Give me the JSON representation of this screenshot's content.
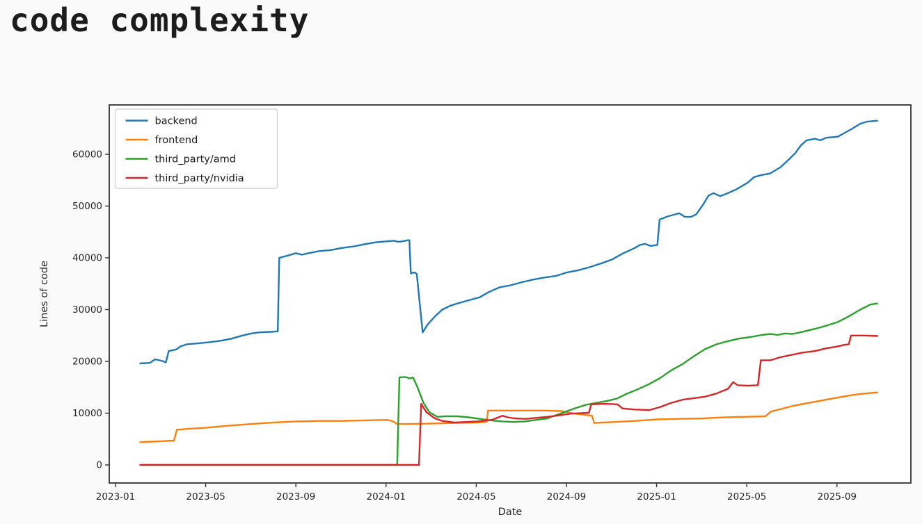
{
  "page": {
    "title": "code complexity"
  },
  "chart_data": {
    "type": "line",
    "title": "code complexity",
    "xlabel": "Date",
    "ylabel": "Lines of code",
    "x_tick_labels": [
      "2023-01",
      "2023-05",
      "2023-09",
      "2024-01",
      "2024-05",
      "2024-09",
      "2025-01",
      "2025-05",
      "2025-09"
    ],
    "y_tick_values": [
      0,
      10000,
      20000,
      30000,
      40000,
      50000,
      60000
    ],
    "ylim": [
      -3500,
      69500
    ],
    "xlim_dates": [
      "2022-12-23",
      "2025-12-11"
    ],
    "grid": false,
    "legend": {
      "position": "upper left",
      "entries": [
        "backend",
        "frontend",
        "third_party/amd",
        "third_party/nvidia"
      ]
    },
    "series": [
      {
        "name": "backend",
        "color": "#1f77b4",
        "points": [
          [
            "2023-02-03",
            19600
          ],
          [
            "2023-02-17",
            19700
          ],
          [
            "2023-02-24",
            20400
          ],
          [
            "2023-03-03",
            20100
          ],
          [
            "2023-03-08",
            19800
          ],
          [
            "2023-03-12",
            22000
          ],
          [
            "2023-03-22",
            22300
          ],
          [
            "2023-03-28",
            22900
          ],
          [
            "2023-04-06",
            23300
          ],
          [
            "2023-04-22",
            23500
          ],
          [
            "2023-05-06",
            23700
          ],
          [
            "2023-05-22",
            24000
          ],
          [
            "2023-06-06",
            24400
          ],
          [
            "2023-06-20",
            25000
          ],
          [
            "2023-07-02",
            25400
          ],
          [
            "2023-07-12",
            25600
          ],
          [
            "2023-07-28",
            25700
          ],
          [
            "2023-08-07",
            25800
          ],
          [
            "2023-08-09",
            40000
          ],
          [
            "2023-08-22",
            40500
          ],
          [
            "2023-09-01",
            40900
          ],
          [
            "2023-09-09",
            40600
          ],
          [
            "2023-09-18",
            40900
          ],
          [
            "2023-10-02",
            41300
          ],
          [
            "2023-10-18",
            41500
          ],
          [
            "2023-11-02",
            41900
          ],
          [
            "2023-11-18",
            42200
          ],
          [
            "2023-12-02",
            42600
          ],
          [
            "2023-12-18",
            43000
          ],
          [
            "2024-01-03",
            43200
          ],
          [
            "2024-01-12",
            43300
          ],
          [
            "2024-01-17",
            43100
          ],
          [
            "2024-01-24",
            43200
          ],
          [
            "2024-01-30",
            43400
          ],
          [
            "2024-02-02",
            43400
          ],
          [
            "2024-02-04",
            37000
          ],
          [
            "2024-02-09",
            37200
          ],
          [
            "2024-02-12",
            36900
          ],
          [
            "2024-02-20",
            25600
          ],
          [
            "2024-02-27",
            27200
          ],
          [
            "2024-03-07",
            28800
          ],
          [
            "2024-03-16",
            30000
          ],
          [
            "2024-03-26",
            30700
          ],
          [
            "2024-04-06",
            31200
          ],
          [
            "2024-04-21",
            31800
          ],
          [
            "2024-05-06",
            32400
          ],
          [
            "2024-05-18",
            33400
          ],
          [
            "2024-06-02",
            34300
          ],
          [
            "2024-06-17",
            34700
          ],
          [
            "2024-07-02",
            35300
          ],
          [
            "2024-07-17",
            35800
          ],
          [
            "2024-08-02",
            36200
          ],
          [
            "2024-08-17",
            36500
          ],
          [
            "2024-09-02",
            37200
          ],
          [
            "2024-09-17",
            37600
          ],
          [
            "2024-10-02",
            38200
          ],
          [
            "2024-10-17",
            38900
          ],
          [
            "2024-11-02",
            39700
          ],
          [
            "2024-11-17",
            40900
          ],
          [
            "2024-12-02",
            41900
          ],
          [
            "2024-12-09",
            42500
          ],
          [
            "2024-12-16",
            42700
          ],
          [
            "2024-12-23",
            42300
          ],
          [
            "2025-01-02",
            42500
          ],
          [
            "2025-01-05",
            47400
          ],
          [
            "2025-01-16",
            48000
          ],
          [
            "2025-02-01",
            48600
          ],
          [
            "2025-02-09",
            47900
          ],
          [
            "2025-02-17",
            47900
          ],
          [
            "2025-02-24",
            48400
          ],
          [
            "2025-03-03",
            50300
          ],
          [
            "2025-03-10",
            52000
          ],
          [
            "2025-03-17",
            52500
          ],
          [
            "2025-03-26",
            51900
          ],
          [
            "2025-04-06",
            52500
          ],
          [
            "2025-04-17",
            53200
          ],
          [
            "2025-05-02",
            54500
          ],
          [
            "2025-05-11",
            55600
          ],
          [
            "2025-05-21",
            56000
          ],
          [
            "2025-06-02",
            56300
          ],
          [
            "2025-06-16",
            57500
          ],
          [
            "2025-06-26",
            58800
          ],
          [
            "2025-07-06",
            60300
          ],
          [
            "2025-07-13",
            61700
          ],
          [
            "2025-07-21",
            62700
          ],
          [
            "2025-08-02",
            63000
          ],
          [
            "2025-08-09",
            62700
          ],
          [
            "2025-08-17",
            63200
          ],
          [
            "2025-09-02",
            63400
          ],
          [
            "2025-09-11",
            64100
          ],
          [
            "2025-09-21",
            64900
          ],
          [
            "2025-10-02",
            65900
          ],
          [
            "2025-10-11",
            66300
          ],
          [
            "2025-10-26",
            66500
          ]
        ]
      },
      {
        "name": "frontend",
        "color": "#ff7f0e",
        "points": [
          [
            "2023-02-03",
            4400
          ],
          [
            "2023-02-20",
            4500
          ],
          [
            "2023-03-06",
            4600
          ],
          [
            "2023-03-19",
            4700
          ],
          [
            "2023-03-23",
            6800
          ],
          [
            "2023-04-10",
            7000
          ],
          [
            "2023-05-02",
            7200
          ],
          [
            "2023-06-02",
            7600
          ],
          [
            "2023-07-02",
            7900
          ],
          [
            "2023-08-02",
            8200
          ],
          [
            "2023-09-02",
            8400
          ],
          [
            "2023-10-02",
            8500
          ],
          [
            "2023-11-02",
            8500
          ],
          [
            "2023-12-02",
            8600
          ],
          [
            "2024-01-02",
            8700
          ],
          [
            "2024-01-09",
            8500
          ],
          [
            "2024-01-16",
            7900
          ],
          [
            "2024-02-02",
            7900
          ],
          [
            "2024-03-02",
            8000
          ],
          [
            "2024-04-02",
            8100
          ],
          [
            "2024-05-02",
            8200
          ],
          [
            "2024-05-15",
            8300
          ],
          [
            "2024-05-17",
            10500
          ],
          [
            "2024-06-02",
            10500
          ],
          [
            "2024-07-02",
            10500
          ],
          [
            "2024-08-02",
            10500
          ],
          [
            "2024-08-25",
            10400
          ],
          [
            "2024-09-12",
            9900
          ],
          [
            "2024-10-05",
            9500
          ],
          [
            "2024-10-08",
            8100
          ],
          [
            "2024-10-20",
            8200
          ],
          [
            "2024-11-05",
            8300
          ],
          [
            "2024-12-02",
            8500
          ],
          [
            "2025-01-02",
            8800
          ],
          [
            "2025-02-02",
            8900
          ],
          [
            "2025-03-02",
            9000
          ],
          [
            "2025-04-02",
            9200
          ],
          [
            "2025-05-02",
            9300
          ],
          [
            "2025-05-26",
            9400
          ],
          [
            "2025-06-03",
            10300
          ],
          [
            "2025-06-17",
            10800
          ],
          [
            "2025-07-02",
            11400
          ],
          [
            "2025-07-17",
            11800
          ],
          [
            "2025-08-02",
            12200
          ],
          [
            "2025-08-17",
            12600
          ],
          [
            "2025-09-02",
            13000
          ],
          [
            "2025-09-17",
            13400
          ],
          [
            "2025-10-02",
            13700
          ],
          [
            "2025-10-16",
            13900
          ],
          [
            "2025-10-26",
            14000
          ]
        ]
      },
      {
        "name": "third_party/amd",
        "color": "#2ca02c",
        "points": [
          [
            "2023-02-03",
            0
          ],
          [
            "2023-06-01",
            0
          ],
          [
            "2023-10-01",
            0
          ],
          [
            "2024-01-16",
            0
          ],
          [
            "2024-01-19",
            16900
          ],
          [
            "2024-01-27",
            17000
          ],
          [
            "2024-02-03",
            16700
          ],
          [
            "2024-02-07",
            16900
          ],
          [
            "2024-02-13",
            15000
          ],
          [
            "2024-02-21",
            12000
          ],
          [
            "2024-02-29",
            10200
          ],
          [
            "2024-03-09",
            9300
          ],
          [
            "2024-03-21",
            9400
          ],
          [
            "2024-04-06",
            9400
          ],
          [
            "2024-04-21",
            9200
          ],
          [
            "2024-05-06",
            8900
          ],
          [
            "2024-05-21",
            8600
          ],
          [
            "2024-06-06",
            8400
          ],
          [
            "2024-06-21",
            8300
          ],
          [
            "2024-07-06",
            8400
          ],
          [
            "2024-07-21",
            8700
          ],
          [
            "2024-08-06",
            9000
          ],
          [
            "2024-08-21",
            9800
          ],
          [
            "2024-09-02",
            10400
          ],
          [
            "2024-09-12",
            10900
          ],
          [
            "2024-09-27",
            11600
          ],
          [
            "2024-10-12",
            12000
          ],
          [
            "2024-10-27",
            12400
          ],
          [
            "2024-11-08",
            12800
          ],
          [
            "2024-11-21",
            13700
          ],
          [
            "2024-12-06",
            14600
          ],
          [
            "2024-12-21",
            15600
          ],
          [
            "2025-01-06",
            16800
          ],
          [
            "2025-01-21",
            18300
          ],
          [
            "2025-02-06",
            19500
          ],
          [
            "2025-02-21",
            21000
          ],
          [
            "2025-03-06",
            22400
          ],
          [
            "2025-03-21",
            23300
          ],
          [
            "2025-04-06",
            23900
          ],
          [
            "2025-04-21",
            24400
          ],
          [
            "2025-05-06",
            24700
          ],
          [
            "2025-05-21",
            25100
          ],
          [
            "2025-06-03",
            25300
          ],
          [
            "2025-06-12",
            25100
          ],
          [
            "2025-06-22",
            25400
          ],
          [
            "2025-07-02",
            25300
          ],
          [
            "2025-07-12",
            25600
          ],
          [
            "2025-08-02",
            26300
          ],
          [
            "2025-08-17",
            26900
          ],
          [
            "2025-09-02",
            27600
          ],
          [
            "2025-09-17",
            28700
          ],
          [
            "2025-10-02",
            30000
          ],
          [
            "2025-10-16",
            31000
          ],
          [
            "2025-10-26",
            31200
          ]
        ]
      },
      {
        "name": "third_party/nvidia",
        "color": "#d62728",
        "points": [
          [
            "2023-02-03",
            0
          ],
          [
            "2023-08-01",
            0
          ],
          [
            "2024-01-02",
            0
          ],
          [
            "2024-02-15",
            0
          ],
          [
            "2024-02-18",
            11800
          ],
          [
            "2024-02-25",
            10200
          ],
          [
            "2024-03-06",
            9000
          ],
          [
            "2024-03-16",
            8500
          ],
          [
            "2024-04-02",
            8200
          ],
          [
            "2024-04-17",
            8300
          ],
          [
            "2024-05-02",
            8400
          ],
          [
            "2024-05-22",
            8700
          ],
          [
            "2024-06-06",
            9500
          ],
          [
            "2024-06-13",
            9200
          ],
          [
            "2024-06-22",
            9000
          ],
          [
            "2024-07-07",
            8900
          ],
          [
            "2024-07-22",
            9100
          ],
          [
            "2024-08-07",
            9300
          ],
          [
            "2024-08-22",
            9600
          ],
          [
            "2024-09-07",
            9900
          ],
          [
            "2024-09-22",
            10000
          ],
          [
            "2024-10-01",
            10100
          ],
          [
            "2024-10-04",
            11700
          ],
          [
            "2024-10-22",
            11800
          ],
          [
            "2024-11-09",
            11700
          ],
          [
            "2024-11-16",
            10900
          ],
          [
            "2024-12-02",
            10700
          ],
          [
            "2024-12-22",
            10600
          ],
          [
            "2025-01-06",
            11200
          ],
          [
            "2025-01-21",
            12000
          ],
          [
            "2025-02-06",
            12600
          ],
          [
            "2025-02-21",
            12900
          ],
          [
            "2025-03-06",
            13200
          ],
          [
            "2025-03-21",
            13800
          ],
          [
            "2025-04-06",
            14700
          ],
          [
            "2025-04-13",
            16000
          ],
          [
            "2025-04-19",
            15400
          ],
          [
            "2025-05-02",
            15300
          ],
          [
            "2025-05-16",
            15400
          ],
          [
            "2025-05-20",
            20200
          ],
          [
            "2025-06-02",
            20200
          ],
          [
            "2025-06-16",
            20800
          ],
          [
            "2025-07-02",
            21300
          ],
          [
            "2025-07-16",
            21700
          ],
          [
            "2025-08-02",
            22000
          ],
          [
            "2025-08-16",
            22500
          ],
          [
            "2025-09-02",
            22900
          ],
          [
            "2025-09-11",
            23200
          ],
          [
            "2025-09-17",
            23300
          ],
          [
            "2025-09-20",
            25000
          ],
          [
            "2025-10-06",
            25000
          ],
          [
            "2025-10-26",
            24900
          ]
        ]
      }
    ]
  }
}
